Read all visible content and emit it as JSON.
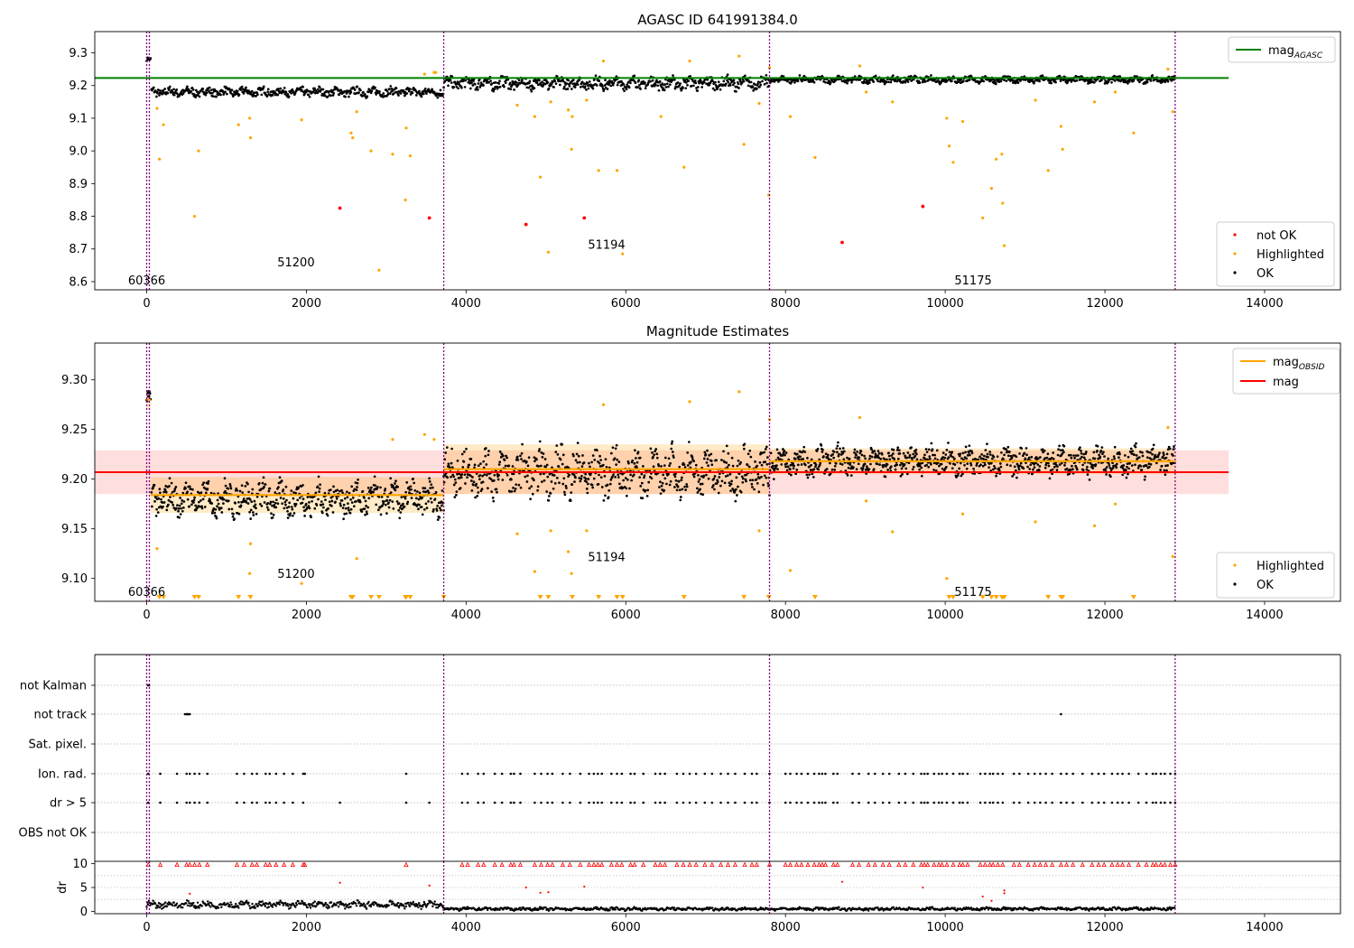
{
  "figure": {
    "top_title": "AGASC ID 641991384.0",
    "middle_title": "Magnitude Estimates"
  },
  "colors": {
    "ok": "#000000",
    "highlighted": "#ffa500",
    "not_ok": "#ff0000",
    "mag_agasc": "#008000",
    "mag_obsid": "#ffa500",
    "mag": "#ff0000",
    "obs_boundary": "#800080"
  },
  "chart_data": [
    {
      "type": "scatter",
      "panel": "top",
      "title": "AGASC ID 641991384.0",
      "xlim": [
        -650,
        14950
      ],
      "ylim": [
        8.575,
        9.365
      ],
      "x_ticks": [
        0,
        2000,
        4000,
        6000,
        8000,
        10000,
        12000,
        14000
      ],
      "y_ticks": [
        8.6,
        8.7,
        8.8,
        8.9,
        9.0,
        9.1,
        9.2,
        9.3
      ],
      "y_tick_labels": [
        "8.6",
        "8.7",
        "8.8",
        "8.9",
        "9.0",
        "9.1",
        "9.2",
        "9.3"
      ],
      "obs_boundaries": [
        0,
        3720,
        7800,
        12880
      ],
      "obs_labels": [
        {
          "text": "60366",
          "x": 0,
          "y": 8.605
        },
        {
          "text": "51200",
          "x": 1870,
          "y": 8.66
        },
        {
          "text": "51194",
          "x": 5760,
          "y": 8.715
        },
        {
          "text": "51175",
          "x": 10350,
          "y": 8.605
        }
      ],
      "mag_agasc": 9.223,
      "mag_agasc_x": [
        -650,
        13550
      ],
      "legend_upper": [
        {
          "label": "mag",
          "sub": "AGASC",
          "color": "#008000"
        }
      ],
      "legend_lower": [
        {
          "label": "not OK",
          "color": "#ff0000"
        },
        {
          "label": "Highlighted",
          "color": "#ffa500"
        },
        {
          "label": "OK",
          "color": "#000000"
        }
      ],
      "ok_segments": [
        {
          "x0": 0,
          "x1": 50,
          "y": 9.28,
          "amp": 0.008
        },
        {
          "x0": 60,
          "x1": 3720,
          "y": 9.18,
          "amp": 0.018
        },
        {
          "x0": 3720,
          "x1": 7800,
          "y": 9.207,
          "amp": 0.025
        },
        {
          "x0": 7800,
          "x1": 12880,
          "y": 9.218,
          "amp": 0.013
        }
      ],
      "highlighted_points": [
        [
          130,
          9.13
        ],
        [
          160,
          8.975
        ],
        [
          210,
          9.08
        ],
        [
          600,
          8.8
        ],
        [
          650,
          9.0
        ],
        [
          1150,
          9.08
        ],
        [
          1290,
          9.1
        ],
        [
          1300,
          9.04
        ],
        [
          1940,
          9.095
        ],
        [
          2560,
          9.055
        ],
        [
          2580,
          9.04
        ],
        [
          2630,
          9.12
        ],
        [
          2810,
          9.0
        ],
        [
          2910,
          8.635
        ],
        [
          3080,
          8.99
        ],
        [
          3240,
          8.85
        ],
        [
          3250,
          9.07
        ],
        [
          3300,
          8.985
        ],
        [
          3480,
          9.235
        ],
        [
          3600,
          9.24
        ],
        [
          3620,
          9.24
        ],
        [
          4640,
          9.14
        ],
        [
          4860,
          9.105
        ],
        [
          4930,
          8.92
        ],
        [
          5030,
          8.69
        ],
        [
          5060,
          9.15
        ],
        [
          5280,
          9.125
        ],
        [
          5320,
          9.005
        ],
        [
          5330,
          9.105
        ],
        [
          5510,
          9.155
        ],
        [
          5660,
          8.94
        ],
        [
          5720,
          9.275
        ],
        [
          5890,
          8.94
        ],
        [
          5960,
          8.685
        ],
        [
          6440,
          9.105
        ],
        [
          6730,
          8.95
        ],
        [
          6800,
          9.275
        ],
        [
          7420,
          9.29
        ],
        [
          7480,
          9.02
        ],
        [
          7670,
          9.145
        ],
        [
          7790,
          8.865
        ],
        [
          7800,
          9.255
        ],
        [
          8060,
          9.105
        ],
        [
          8370,
          8.98
        ],
        [
          8930,
          9.26
        ],
        [
          9010,
          9.18
        ],
        [
          9340,
          9.15
        ],
        [
          10020,
          9.1
        ],
        [
          10050,
          9.015
        ],
        [
          10100,
          8.965
        ],
        [
          10220,
          9.09
        ],
        [
          10470,
          8.795
        ],
        [
          10580,
          8.885
        ],
        [
          10640,
          8.975
        ],
        [
          10710,
          8.99
        ],
        [
          10720,
          8.84
        ],
        [
          10740,
          8.71
        ],
        [
          11130,
          9.155
        ],
        [
          11290,
          8.94
        ],
        [
          11450,
          9.075
        ],
        [
          11470,
          9.005
        ],
        [
          11870,
          9.15
        ],
        [
          12130,
          9.18
        ],
        [
          12360,
          9.055
        ],
        [
          12790,
          9.25
        ],
        [
          12850,
          9.12
        ]
      ],
      "not_ok_points": [
        [
          2420,
          8.825
        ],
        [
          3540,
          8.795
        ],
        [
          4750,
          8.775
        ],
        [
          5480,
          8.795
        ],
        [
          8710,
          8.72
        ],
        [
          9720,
          8.83
        ]
      ]
    },
    {
      "type": "scatter",
      "panel": "middle",
      "title": "Magnitude Estimates",
      "xlim": [
        -650,
        14950
      ],
      "ylim": [
        9.077,
        9.337
      ],
      "x_ticks": [
        0,
        2000,
        4000,
        6000,
        8000,
        10000,
        12000,
        14000
      ],
      "y_ticks": [
        9.1,
        9.15,
        9.2,
        9.25,
        9.3
      ],
      "y_tick_labels": [
        "9.10",
        "9.15",
        "9.20",
        "9.25",
        "9.30"
      ],
      "obs_boundaries": [
        0,
        3720,
        7800,
        12880
      ],
      "obs_labels": [
        {
          "text": "60366",
          "x": 0,
          "y": 9.087
        },
        {
          "text": "51200",
          "x": 1870,
          "y": 9.105
        },
        {
          "text": "51194",
          "x": 5760,
          "y": 9.122
        },
        {
          "text": "51175",
          "x": 10350,
          "y": 9.087
        }
      ],
      "mag": 9.207,
      "mag_band": [
        9.185,
        9.229
      ],
      "mag_x": [
        -650,
        13550
      ],
      "mag_obsid": [
        {
          "x0": 0,
          "x1": 50,
          "y": 9.28,
          "band": [
            9.27,
            9.29
          ]
        },
        {
          "x0": 50,
          "x1": 3720,
          "y": 9.184,
          "band": [
            9.166,
            9.202
          ]
        },
        {
          "x0": 3720,
          "x1": 7800,
          "y": 9.21,
          "band": [
            9.185,
            9.235
          ]
        },
        {
          "x0": 7800,
          "x1": 12880,
          "y": 9.218,
          "band": [
            9.205,
            9.231
          ]
        }
      ],
      "legend_upper": [
        {
          "label": "mag",
          "sub": "OBSID",
          "color": "#ffa500"
        },
        {
          "label": "mag",
          "sub": "",
          "color": "#ff0000"
        }
      ],
      "legend_lower": [
        {
          "label": "Highlighted",
          "color": "#ffa500"
        },
        {
          "label": "OK",
          "color": "#000000"
        }
      ],
      "ok_segments": [
        {
          "x0": 0,
          "x1": 50,
          "y": 9.28,
          "amp": 0.01
        },
        {
          "x0": 60,
          "x1": 3720,
          "y": 9.18,
          "amp": 0.022
        },
        {
          "x0": 3720,
          "x1": 7800,
          "y": 9.207,
          "amp": 0.03
        },
        {
          "x0": 7800,
          "x1": 12880,
          "y": 9.218,
          "amp": 0.018
        }
      ],
      "highlighted_points": [
        [
          130,
          9.13
        ],
        [
          1290,
          9.105
        ],
        [
          1300,
          9.135
        ],
        [
          1940,
          9.095
        ],
        [
          2630,
          9.12
        ],
        [
          3080,
          9.24
        ],
        [
          3480,
          9.245
        ],
        [
          3600,
          9.24
        ],
        [
          4640,
          9.145
        ],
        [
          4860,
          9.107
        ],
        [
          5060,
          9.148
        ],
        [
          5280,
          9.127
        ],
        [
          5320,
          9.105
        ],
        [
          5510,
          9.148
        ],
        [
          5720,
          9.275
        ],
        [
          6800,
          9.278
        ],
        [
          7420,
          9.288
        ],
        [
          7670,
          9.148
        ],
        [
          7800,
          9.26
        ],
        [
          8060,
          9.108
        ],
        [
          8930,
          9.262
        ],
        [
          9010,
          9.178
        ],
        [
          9340,
          9.147
        ],
        [
          10020,
          9.1
        ],
        [
          10220,
          9.165
        ],
        [
          11130,
          9.157
        ],
        [
          11870,
          9.153
        ],
        [
          12130,
          9.175
        ],
        [
          12790,
          9.252
        ],
        [
          12850,
          9.122
        ]
      ],
      "low_markers_x": [
        160,
        210,
        600,
        650,
        1150,
        1300,
        2560,
        2580,
        2810,
        2910,
        3240,
        3250,
        3300,
        3720,
        4930,
        5030,
        5330,
        5660,
        5890,
        5960,
        6730,
        7480,
        7790,
        8370,
        10050,
        10100,
        10470,
        10580,
        10640,
        10710,
        10720,
        10740,
        11290,
        11450,
        11470,
        12360
      ]
    },
    {
      "type": "scatter",
      "panel": "flags",
      "xlim": [
        -650,
        14950
      ],
      "x_ticks": [
        0,
        2000,
        4000,
        6000,
        8000,
        10000,
        12000,
        14000
      ],
      "categories": [
        "not Kalman",
        "not track",
        "Sat. pixel.",
        "Ion. rad.",
        "dr > 5",
        "OBS not OK"
      ],
      "obs_boundaries": [
        0,
        3720,
        7800,
        12880
      ],
      "flag_points": {
        "not Kalman": [
          20,
          30
        ],
        "not track": [
          480,
          500,
          510,
          520,
          540,
          11450
        ],
        "Sat. pixel.": [],
        "Ion. rad.": [
          20,
          170,
          380,
          500,
          540,
          600,
          660,
          760,
          1130,
          1220,
          1320,
          1380,
          1490,
          1540,
          1620,
          1720,
          1830,
          1960,
          1980,
          3250,
          3950,
          4020,
          4150,
          4220,
          4360,
          4450,
          4560,
          4600,
          4680,
          4860,
          4940,
          5020,
          5080,
          5210,
          5300,
          5430,
          5540,
          5600,
          5650,
          5700,
          5820,
          5890,
          5950,
          6060,
          6110,
          6220,
          6370,
          6430,
          6490,
          6640,
          6720,
          6800,
          6880,
          6990,
          7080,
          7190,
          7280,
          7370,
          7490,
          7580,
          7640,
          7800,
          8000,
          8060,
          8140,
          8200,
          8280,
          8360,
          8420,
          8460,
          8500,
          8600,
          8650,
          8840,
          8920,
          9040,
          9120,
          9220,
          9300,
          9420,
          9500,
          9600,
          9700,
          9740,
          9780,
          9860,
          9920,
          9960,
          10020,
          10100,
          10180,
          10220,
          10280,
          10440,
          10500,
          10560,
          10600,
          10660,
          10720,
          10860,
          10930,
          11040,
          11120,
          11190,
          11260,
          11340,
          11450,
          11520,
          11600,
          11720,
          11840,
          11920,
          11990,
          12090,
          12160,
          12220,
          12300,
          12420,
          12520,
          12600,
          12640,
          12700,
          12750,
          12820,
          12880
        ],
        "dr > 5": [
          20,
          170,
          380,
          500,
          540,
          600,
          660,
          760,
          1130,
          1220,
          1320,
          1380,
          1490,
          1540,
          1620,
          1720,
          1830,
          1960,
          2420,
          3250,
          3540,
          3950,
          4020,
          4150,
          4220,
          4360,
          4450,
          4560,
          4600,
          4680,
          4860,
          4940,
          5020,
          5080,
          5210,
          5300,
          5430,
          5540,
          5600,
          5650,
          5700,
          5820,
          5890,
          5950,
          6060,
          6110,
          6220,
          6370,
          6430,
          6490,
          6640,
          6720,
          6800,
          6880,
          6990,
          7080,
          7190,
          7280,
          7370,
          7490,
          7580,
          7640,
          7800,
          8000,
          8060,
          8140,
          8200,
          8280,
          8360,
          8420,
          8460,
          8500,
          8600,
          8650,
          8840,
          8920,
          9040,
          9120,
          9220,
          9300,
          9420,
          9500,
          9600,
          9700,
          9740,
          9780,
          9860,
          9920,
          9960,
          10020,
          10100,
          10180,
          10220,
          10280,
          10440,
          10500,
          10560,
          10600,
          10660,
          10720,
          10860,
          10930,
          11040,
          11120,
          11190,
          11260,
          11340,
          11450,
          11520,
          11600,
          11720,
          11840,
          11920,
          11990,
          12090,
          12160,
          12220,
          12300,
          12420,
          12520,
          12600,
          12640,
          12700,
          12750,
          12820,
          12880
        ],
        "OBS not OK": []
      }
    },
    {
      "type": "scatter",
      "panel": "dr",
      "ylabel": "dr",
      "xlim": [
        -650,
        14950
      ],
      "ylim": [
        -0.5,
        10.5
      ],
      "x_ticks": [
        0,
        2000,
        4000,
        6000,
        8000,
        10000,
        12000,
        14000
      ],
      "x_tick_labels": [
        "0",
        "2000",
        "4000",
        "6000",
        "8000",
        "10000",
        "12000",
        "14000"
      ],
      "y_ticks": [
        0,
        5,
        10
      ],
      "y_tick_labels": [
        "0",
        "5",
        "10"
      ],
      "obs_boundaries": [
        0,
        3720,
        7800,
        12880
      ],
      "ok_segments": [
        {
          "x0": 0,
          "x1": 3720,
          "y": 1.4,
          "amp": 0.9
        },
        {
          "x0": 3720,
          "x1": 12880,
          "y": 0.5,
          "amp": 0.4
        }
      ],
      "outlier_points": [
        [
          540,
          3.7
        ],
        [
          2420,
          6.0
        ],
        [
          3540,
          5.4
        ],
        [
          4750,
          5.0
        ],
        [
          4930,
          3.9
        ],
        [
          5030,
          4.0
        ],
        [
          5480,
          5.2
        ],
        [
          8710,
          6.2
        ],
        [
          9720,
          5.0
        ],
        [
          10470,
          3.1
        ],
        [
          10740,
          3.8
        ],
        [
          10740,
          4.4
        ],
        [
          10580,
          2.2
        ]
      ],
      "capped_x": [
        20,
        170,
        380,
        500,
        540,
        600,
        660,
        760,
        1130,
        1220,
        1320,
        1380,
        1490,
        1540,
        1620,
        1720,
        1830,
        1960,
        1980,
        3250,
        3950,
        4020,
        4150,
        4220,
        4360,
        4450,
        4560,
        4600,
        4680,
        4860,
        4940,
        5020,
        5080,
        5210,
        5300,
        5430,
        5540,
        5600,
        5650,
        5700,
        5820,
        5890,
        5950,
        6060,
        6110,
        6220,
        6370,
        6430,
        6490,
        6640,
        6720,
        6800,
        6880,
        6990,
        7080,
        7190,
        7280,
        7370,
        7490,
        7580,
        7640,
        7800,
        8000,
        8060,
        8140,
        8200,
        8280,
        8360,
        8420,
        8460,
        8500,
        8600,
        8650,
        8840,
        8920,
        9040,
        9120,
        9220,
        9300,
        9420,
        9500,
        9600,
        9700,
        9740,
        9780,
        9860,
        9920,
        9960,
        10020,
        10100,
        10180,
        10220,
        10280,
        10440,
        10500,
        10560,
        10600,
        10660,
        10720,
        10860,
        10930,
        11040,
        11120,
        11190,
        11260,
        11340,
        11450,
        11520,
        11600,
        11720,
        11840,
        11920,
        11990,
        12090,
        12160,
        12220,
        12300,
        12420,
        12520,
        12600,
        12640,
        12700,
        12750,
        12820,
        12880
      ]
    }
  ]
}
